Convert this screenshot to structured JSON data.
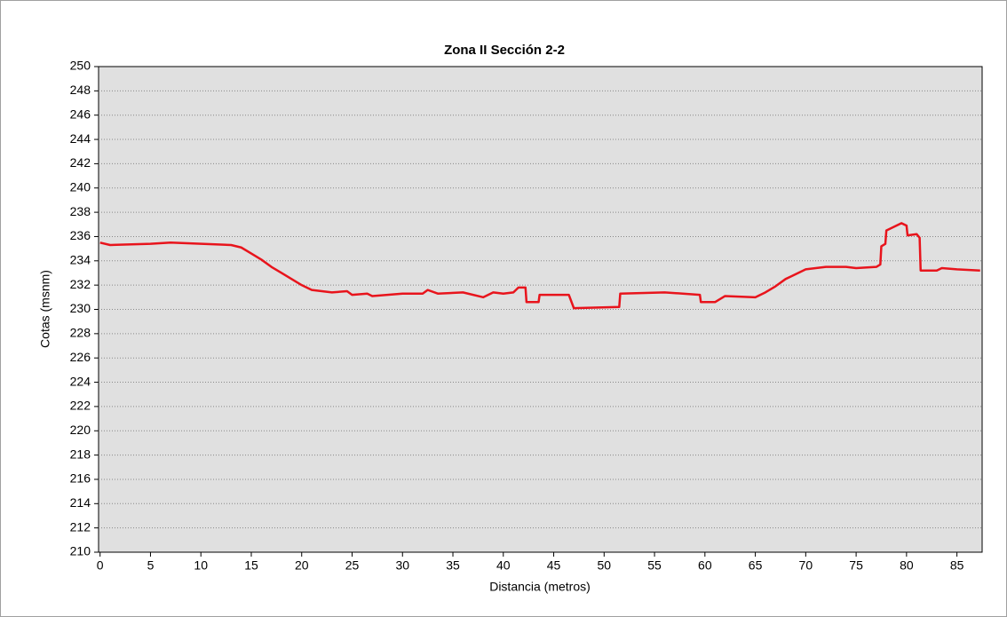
{
  "chart_data": {
    "type": "line",
    "title": "Zona II Sección 2-2",
    "xlabel": "Distancia (metros)",
    "ylabel": "Cotas (msnm)",
    "x": [
      0,
      1,
      5,
      7,
      13,
      14,
      15,
      16,
      17,
      18,
      19,
      20,
      21,
      22,
      23,
      24.5,
      25,
      26.5,
      27,
      30,
      32,
      32.5,
      33.5,
      36,
      38,
      39,
      40,
      41,
      41.5,
      42.2,
      42.3,
      43.5,
      43.6,
      46.5,
      47,
      51.5,
      51.6,
      56,
      59.5,
      59.6,
      61,
      62,
      65,
      66,
      67,
      68,
      69,
      70,
      72,
      74,
      75,
      77,
      77.4,
      77.5,
      77.9,
      78,
      79,
      79.5,
      80,
      80.1,
      81,
      81.3,
      81.4,
      83,
      83.5,
      85,
      87.3
    ],
    "series": [
      {
        "name": "Cotas",
        "color": "#e8141c",
        "values": [
          235.5,
          235.3,
          235.4,
          235.5,
          235.3,
          235.1,
          234.6,
          234.1,
          233.5,
          233.0,
          232.5,
          232.0,
          231.6,
          231.5,
          231.4,
          231.5,
          231.2,
          231.3,
          231.1,
          231.3,
          231.3,
          231.6,
          231.3,
          231.4,
          231.0,
          231.4,
          231.3,
          231.4,
          231.8,
          231.8,
          230.6,
          230.6,
          231.2,
          231.2,
          230.1,
          230.2,
          231.3,
          231.4,
          231.2,
          230.6,
          230.6,
          231.1,
          231.0,
          231.4,
          231.9,
          232.5,
          232.9,
          233.3,
          233.5,
          233.5,
          233.4,
          233.5,
          233.7,
          235.2,
          235.4,
          236.5,
          236.9,
          237.1,
          236.9,
          236.1,
          236.2,
          235.9,
          233.2,
          233.2,
          233.4,
          233.3,
          233.2
        ]
      }
    ],
    "xlim": [
      -0.15,
      87.5
    ],
    "xticks": [
      0,
      5,
      10,
      15,
      20,
      25,
      30,
      35,
      40,
      45,
      50,
      55,
      60,
      65,
      70,
      75,
      80,
      85
    ],
    "ylim": [
      210,
      250
    ],
    "yticks": [
      210,
      212,
      214,
      216,
      218,
      220,
      222,
      224,
      226,
      228,
      230,
      232,
      234,
      236,
      238,
      240,
      242,
      244,
      246,
      248,
      250
    ],
    "grid": true
  }
}
